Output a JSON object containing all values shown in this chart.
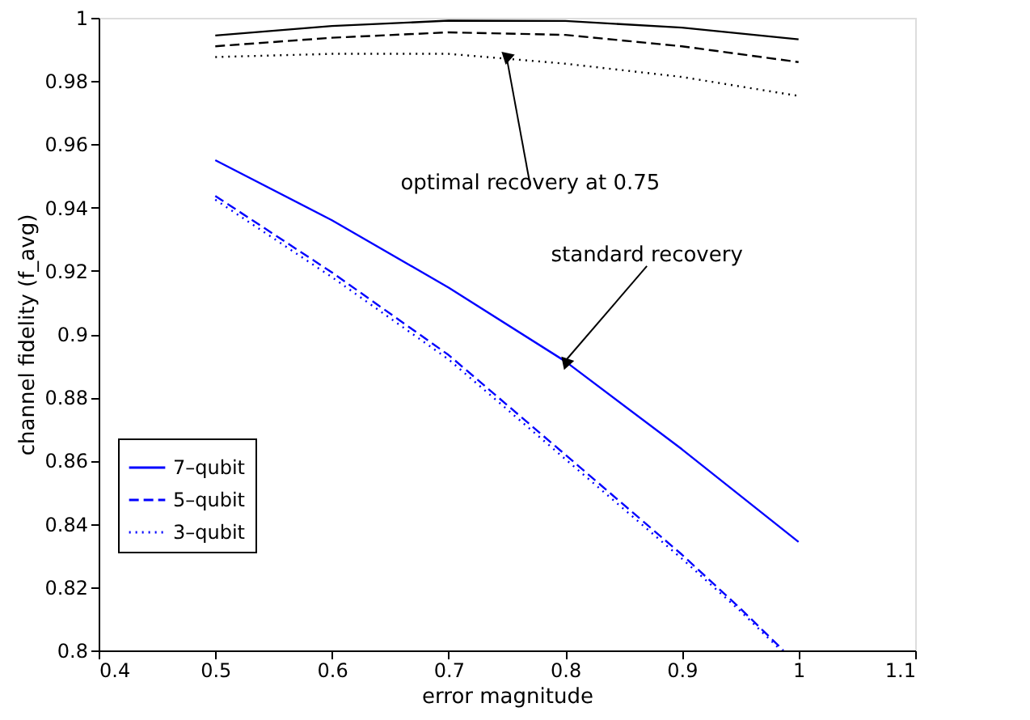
{
  "chart_data": {
    "type": "line",
    "xlabel": "error magnitude",
    "ylabel": "channel fidelity (f_avg)",
    "xlim": [
      0.4,
      1.1
    ],
    "xticks": [
      0.4,
      0.5,
      0.6,
      0.7,
      0.8,
      0.9,
      1,
      1.1
    ],
    "ylim": [
      0.8,
      1
    ],
    "yticks": [
      0.8,
      0.82,
      0.84,
      0.86,
      0.88,
      0.9,
      0.92,
      0.94,
      0.96,
      0.98,
      1
    ],
    "grid": false,
    "legend": "bottom left",
    "series": [
      {
        "color": "#000000",
        "line_style": "solid",
        "x": [
          0.5,
          0.6,
          0.7,
          0.8,
          0.9,
          1.0
        ],
        "values": [
          0.9944,
          0.9974,
          0.9991,
          0.999,
          0.9969,
          0.9932
        ]
      },
      {
        "color": "#000000",
        "line_style": "dashed",
        "x": [
          0.5,
          0.6,
          0.7,
          0.8,
          0.9,
          1.0
        ],
        "values": [
          0.991,
          0.9937,
          0.9954,
          0.9946,
          0.991,
          0.986
        ]
      },
      {
        "color": "#000000",
        "line_style": "dotted",
        "x": [
          0.5,
          0.6,
          0.7,
          0.8,
          0.9,
          1.0
        ],
        "values": [
          0.9876,
          0.9886,
          0.9886,
          0.9855,
          0.9813,
          0.9753
        ]
      },
      {
        "name": "7–qubit",
        "color": "#0000ff",
        "line_style": "solid",
        "x": [
          0.5,
          0.6,
          0.7,
          0.8,
          0.9,
          1.0
        ],
        "values": [
          0.955,
          0.936,
          0.9147,
          0.8914,
          0.8636,
          0.8343
        ]
      },
      {
        "name": "5–qubit",
        "color": "#0000ff",
        "line_style": "dashed",
        "x": [
          0.5,
          0.6,
          0.7,
          0.8,
          0.9,
          0.95,
          0.987
        ],
        "values": [
          0.9437,
          0.9195,
          0.8934,
          0.8619,
          0.8303,
          0.8133,
          0.8
        ]
      },
      {
        "name": "3–qubit",
        "color": "#0000ff",
        "line_style": "dotted",
        "x": [
          0.5,
          0.6,
          0.7,
          0.8,
          0.9,
          0.95,
          0.985
        ],
        "values": [
          0.9425,
          0.918,
          0.892,
          0.8605,
          0.829,
          0.8125,
          0.8
        ]
      }
    ],
    "annotations": [
      {
        "text": "optimal recovery at 0.75",
        "x": 0.75,
        "y": 0.987
      },
      {
        "text": "standard recovery",
        "x": 0.8,
        "y": 0.8915
      }
    ]
  }
}
